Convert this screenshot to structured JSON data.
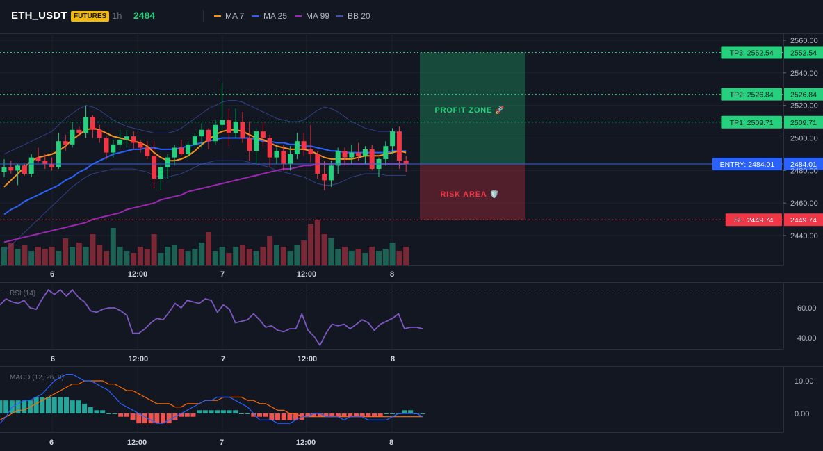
{
  "header": {
    "symbol": "ETH_USDT",
    "badge": "FUTURES",
    "timeframe": "1h",
    "last_price": "2484"
  },
  "legend": [
    {
      "label": "MA 7",
      "color": "#f7931a",
      "icon": "line-swatch"
    },
    {
      "label": "MA 25",
      "color": "#2962ff",
      "icon": "line-swatch"
    },
    {
      "label": "MA 99",
      "color": "#9c27b0",
      "icon": "line-swatch"
    },
    {
      "label": "BB 20",
      "color": "#3f51b5",
      "icon": "line-swatch"
    }
  ],
  "colors": {
    "background": "#131722",
    "up": "#26d07c",
    "down": "#f23645",
    "grid": "#1e222d",
    "entry": "#2962ff",
    "tp": "#26d07c",
    "sl": "#f23645",
    "rsi": "#7e57c2",
    "macd": "#2962ff",
    "signal": "#ff6d00"
  },
  "price_axis": {
    "ticks": [
      "2560.00",
      "2540.00",
      "2520.00",
      "2500.00",
      "2480.00",
      "2460.00",
      "2440.00"
    ],
    "ylim": [
      2433,
      2562
    ]
  },
  "time_axis": {
    "labels": [
      "6",
      "12:00",
      "7",
      "12:00",
      "8"
    ]
  },
  "levels": {
    "tp3": {
      "label": "TP3: 2552.54",
      "value": 2552.54,
      "axis": "2552.54"
    },
    "tp2": {
      "label": "TP2: 2526.84",
      "value": 2526.84,
      "axis": "2526.84"
    },
    "tp1": {
      "label": "TP1: 2509.71",
      "value": 2509.71,
      "axis": "2509.71"
    },
    "entry": {
      "label": "ENTRY: 2484.01",
      "value": 2484.01,
      "axis": "2484.01"
    },
    "sl": {
      "label": "SL: 2449.74",
      "value": 2449.74,
      "axis": "2449.74"
    }
  },
  "zones": {
    "profit": "PROFIT ZONE 🚀",
    "risk": "RISK AREA 🛡️"
  },
  "rsi": {
    "title": "RSI (14)",
    "ticks": [
      "60.00",
      "40.00"
    ],
    "ylim": [
      32,
      76
    ],
    "values": [
      62,
      66,
      64,
      63,
      65,
      60,
      59,
      66,
      72,
      69,
      72,
      68,
      72,
      67,
      64,
      58,
      57,
      59,
      60,
      60,
      58,
      55,
      43,
      43,
      46,
      50,
      53,
      52,
      57,
      63,
      60,
      65,
      64,
      63,
      66,
      65,
      57,
      62,
      59,
      50,
      51,
      52,
      56,
      52,
      47,
      48,
      45,
      44,
      46,
      46,
      56,
      45,
      41,
      35,
      43,
      49,
      48,
      49,
      46,
      49,
      52,
      50,
      45,
      49,
      51,
      53,
      56,
      46,
      47,
      47,
      46
    ]
  },
  "macd": {
    "title": "MACD (12, 26, 9)",
    "ticks": [
      "10.00",
      "0.00"
    ],
    "ylim": [
      -9,
      14
    ],
    "macd": [
      -3,
      -1,
      2,
      3,
      4,
      4,
      5,
      6,
      8,
      10,
      11,
      12,
      12,
      11,
      10,
      10,
      9,
      8,
      7,
      5,
      3,
      2,
      1,
      0,
      -1,
      -2,
      -3,
      -3,
      -2,
      -1,
      0,
      1,
      2,
      3,
      4,
      4,
      5,
      5,
      5,
      4,
      3,
      2,
      0,
      -2,
      -2,
      -2,
      -3,
      -3,
      -3,
      -2,
      -1,
      -1,
      0,
      0,
      -1,
      -1,
      -1,
      -2,
      -1,
      -1,
      -1,
      -2,
      -2,
      -2,
      -2,
      -1,
      0,
      0,
      0,
      0,
      -1
    ],
    "signal": [
      -2,
      -1,
      0,
      1,
      1,
      2,
      3,
      4,
      5,
      6,
      7,
      8,
      9,
      9,
      10,
      10,
      10,
      10,
      9,
      9,
      8,
      7,
      7,
      6,
      5,
      4,
      3,
      3,
      3,
      2,
      2,
      3,
      3,
      3,
      4,
      4,
      4,
      5,
      5,
      5,
      5,
      4,
      4,
      3,
      3,
      2,
      1,
      1,
      0,
      0,
      -1,
      -1,
      -1,
      -1,
      -1,
      -1,
      -1,
      -1,
      -1,
      -1,
      -1,
      -1,
      -1,
      -1,
      -1,
      -1,
      -1,
      -1,
      -1,
      -1,
      -1
    ],
    "hist": [
      4,
      4,
      4,
      4,
      4,
      4,
      5,
      5,
      5,
      5,
      5,
      5,
      4,
      4,
      3,
      2,
      1,
      1,
      0,
      0,
      -1,
      -1,
      -2,
      -3,
      -3,
      -3,
      -3,
      -3,
      -3,
      -2,
      -1,
      -1,
      -1,
      1,
      1,
      1,
      1,
      1,
      1,
      1,
      0,
      0,
      -1,
      -1,
      -1,
      -2,
      -2,
      -2,
      -2,
      -2,
      -2,
      -1,
      -1,
      -1,
      -1,
      -1,
      -1,
      -1,
      -1,
      -1,
      -1,
      -1,
      -1,
      -1,
      0,
      0,
      0,
      1,
      1,
      0,
      0
    ]
  },
  "chart_data": {
    "type": "candlestick",
    "ylim": [
      2433,
      2562
    ],
    "candles": [
      [
        2479,
        2487,
        2476,
        2482
      ],
      [
        2482,
        2486,
        2478,
        2480
      ],
      [
        2480,
        2484,
        2471,
        2483
      ],
      [
        2483,
        2484,
        2477,
        2478
      ],
      [
        2478,
        2490,
        2476,
        2488
      ],
      [
        2488,
        2494,
        2485,
        2486
      ],
      [
        2486,
        2490,
        2481,
        2484
      ],
      [
        2484,
        2488,
        2480,
        2482
      ],
      [
        2482,
        2503,
        2481,
        2498
      ],
      [
        2498,
        2502,
        2492,
        2496
      ],
      [
        2496,
        2510,
        2494,
        2505
      ],
      [
        2505,
        2507,
        2501,
        2503
      ],
      [
        2503,
        2520,
        2500,
        2513
      ],
      [
        2513,
        2514,
        2500,
        2505
      ],
      [
        2505,
        2508,
        2497,
        2500
      ],
      [
        2500,
        2501,
        2487,
        2491
      ],
      [
        2491,
        2499,
        2488,
        2496
      ],
      [
        2496,
        2505,
        2494,
        2499
      ],
      [
        2499,
        2505,
        2494,
        2501
      ],
      [
        2501,
        2504,
        2493,
        2497
      ],
      [
        2497,
        2499,
        2491,
        2494
      ],
      [
        2494,
        2498,
        2487,
        2489
      ],
      [
        2489,
        2498,
        2469,
        2475
      ],
      [
        2475,
        2485,
        2468,
        2482
      ],
      [
        2482,
        2490,
        2475,
        2488
      ],
      [
        2488,
        2496,
        2483,
        2494
      ],
      [
        2494,
        2499,
        2489,
        2490
      ],
      [
        2490,
        2498,
        2488,
        2496
      ],
      [
        2496,
        2503,
        2494,
        2501
      ],
      [
        2501,
        2509,
        2494,
        2505
      ],
      [
        2505,
        2506,
        2493,
        2498
      ],
      [
        2498,
        2511,
        2496,
        2508
      ],
      [
        2508,
        2534,
        2505,
        2511
      ],
      [
        2511,
        2518,
        2495,
        2503
      ],
      [
        2503,
        2518,
        2500,
        2510
      ],
      [
        2510,
        2516,
        2497,
        2500
      ],
      [
        2500,
        2510,
        2486,
        2492
      ],
      [
        2492,
        2506,
        2484,
        2504
      ],
      [
        2504,
        2510,
        2495,
        2500
      ],
      [
        2500,
        2502,
        2482,
        2488
      ],
      [
        2488,
        2494,
        2484,
        2492
      ],
      [
        2492,
        2496,
        2480,
        2484
      ],
      [
        2484,
        2495,
        2480,
        2490
      ],
      [
        2490,
        2503,
        2487,
        2498
      ],
      [
        2498,
        2503,
        2489,
        2493
      ],
      [
        2493,
        2508,
        2485,
        2490
      ],
      [
        2490,
        2492,
        2475,
        2478
      ],
      [
        2478,
        2486,
        2468,
        2474
      ],
      [
        2474,
        2486,
        2470,
        2483
      ],
      [
        2483,
        2494,
        2478,
        2492
      ],
      [
        2492,
        2494,
        2483,
        2488
      ],
      [
        2488,
        2496,
        2484,
        2491
      ],
      [
        2491,
        2497,
        2486,
        2489
      ],
      [
        2489,
        2495,
        2484,
        2493
      ],
      [
        2493,
        2496,
        2480,
        2481
      ],
      [
        2481,
        2488,
        2476,
        2487
      ],
      [
        2487,
        2498,
        2483,
        2495
      ],
      [
        2495,
        2506,
        2490,
        2504
      ],
      [
        2504,
        2507,
        2481,
        2486
      ],
      [
        2486,
        2489,
        2479,
        2484
      ]
    ],
    "volume": [
      18,
      22,
      16,
      20,
      14,
      18,
      16,
      18,
      14,
      26,
      18,
      22,
      18,
      30,
      20,
      14,
      36,
      18,
      14,
      12,
      18,
      16,
      30,
      12,
      18,
      20,
      16,
      14,
      16,
      22,
      32,
      14,
      18,
      12,
      18,
      20,
      16,
      14,
      18,
      28,
      20,
      18,
      14,
      20,
      24,
      40,
      44,
      30,
      26,
      16,
      18,
      14,
      16,
      12,
      18,
      14,
      16,
      22,
      14,
      18
    ],
    "ma7": [
      2470,
      2474,
      2478,
      2482,
      2486,
      2488,
      2489,
      2490,
      2492,
      2495,
      2499,
      2502,
      2505,
      2506,
      2505,
      2503,
      2501,
      2500,
      2499,
      2498,
      2497,
      2495,
      2491,
      2488,
      2486,
      2486,
      2487,
      2489,
      2492,
      2496,
      2499,
      2502,
      2504,
      2505,
      2505,
      2504,
      2502,
      2500,
      2499,
      2497,
      2495,
      2494,
      2493,
      2493,
      2493,
      2492,
      2490,
      2488,
      2487,
      2487,
      2487,
      2487,
      2488,
      2489,
      2489,
      2489,
      2490,
      2491,
      2492,
      2491
    ],
    "ma25": [
      2453,
      2456,
      2458,
      2461,
      2463,
      2465,
      2467,
      2469,
      2471,
      2474,
      2476,
      2479,
      2481,
      2484,
      2486,
      2488,
      2490,
      2491,
      2492,
      2493,
      2493,
      2494,
      2494,
      2493,
      2493,
      2493,
      2494,
      2495,
      2496,
      2497,
      2498,
      2499,
      2500,
      2500,
      2500,
      2500,
      2500,
      2499,
      2498,
      2498,
      2497,
      2497,
      2496,
      2496,
      2495,
      2495,
      2494,
      2493,
      2492,
      2492,
      2491,
      2491,
      2491,
      2491,
      2491,
      2491,
      2491,
      2492,
      2492,
      2492
    ],
    "ma99": [
      2436,
      2437,
      2438,
      2439,
      2440,
      2441,
      2442,
      2443,
      2444,
      2445,
      2446,
      2447,
      2448,
      2450,
      2451,
      2452,
      2453,
      2454,
      2456,
      2457,
      2458,
      2459,
      2460,
      2462,
      2463,
      2464,
      2465,
      2467,
      2468,
      2469,
      2470,
      2471,
      2472,
      2473,
      2474,
      2475,
      2476,
      2477,
      2478,
      2479,
      2480,
      2481,
      2481,
      2482,
      2483,
      2483,
      2484,
      2484,
      2484,
      2484,
      2484,
      2484,
      2484,
      2484,
      2484,
      2484,
      2484,
      2484,
      2484,
      2484
    ],
    "bb_upper": [
      2490,
      2492,
      2494,
      2496,
      2498,
      2500,
      2502,
      2504,
      2508,
      2512,
      2515,
      2518,
      2520,
      2519,
      2517,
      2514,
      2511,
      2509,
      2507,
      2506,
      2505,
      2504,
      2503,
      2503,
      2503,
      2504,
      2506,
      2509,
      2512,
      2515,
      2518,
      2520,
      2522,
      2523,
      2523,
      2522,
      2520,
      2518,
      2516,
      2514,
      2512,
      2511,
      2510,
      2510,
      2511,
      2514,
      2517,
      2519,
      2518,
      2516,
      2513,
      2510,
      2508,
      2506,
      2505,
      2504,
      2504,
      2504,
      2503,
      2503
    ],
    "bb_lower": [
      2430,
      2434,
      2438,
      2442,
      2446,
      2450,
      2454,
      2458,
      2462,
      2466,
      2470,
      2473,
      2476,
      2478,
      2479,
      2480,
      2481,
      2481,
      2481,
      2481,
      2480,
      2479,
      2477,
      2476,
      2476,
      2477,
      2478,
      2480,
      2482,
      2484,
      2485,
      2486,
      2486,
      2486,
      2486,
      2486,
      2485,
      2484,
      2483,
      2482,
      2480,
      2479,
      2478,
      2477,
      2476,
      2474,
      2472,
      2471,
      2471,
      2472,
      2474,
      2476,
      2477,
      2478,
      2478,
      2478,
      2477,
      2477,
      2477,
      2477
    ]
  }
}
